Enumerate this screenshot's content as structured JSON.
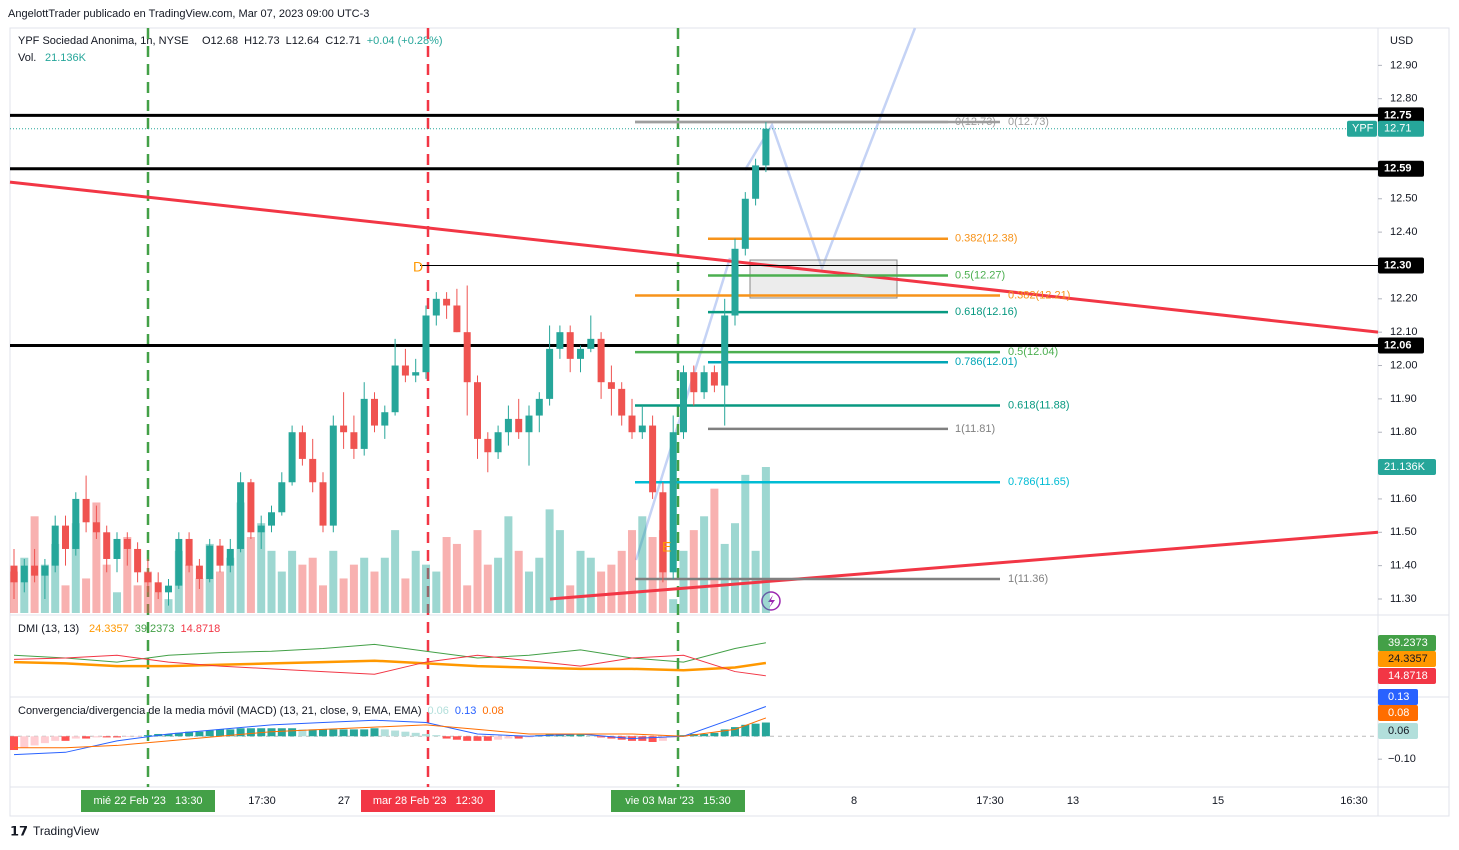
{
  "header": {
    "publisher": "AngelottTrader publicado en TradingView.com, Mar 07, 2023 09:00 UTC-3",
    "symbol": "YPF Sociedad Anonima, 1h, NYSE",
    "ohlc": [
      "O12.68",
      "H12.73",
      "L12.64",
      "C12.71",
      "+0.04 (+0.28%)"
    ],
    "volume_title": "Vol.",
    "volume_value": "21.136K",
    "currency": "USD",
    "footer": "TradingView"
  },
  "chart_data": {
    "type": "candlestick",
    "ylim": [
      11.252,
      13.012
    ],
    "yticks": [
      {
        "value": 12.9,
        "label": "12.90"
      },
      {
        "value": 12.8,
        "label": "12.80"
      },
      {
        "value": 12.5,
        "label": "12.50"
      },
      {
        "value": 12.4,
        "label": "12.40"
      },
      {
        "value": 12.2,
        "label": "12.20"
      },
      {
        "value": 12.1,
        "label": "12.10"
      },
      {
        "value": 12.0,
        "label": "12.00"
      },
      {
        "value": 11.9,
        "label": "11.90"
      },
      {
        "value": 11.8,
        "label": "11.80"
      },
      {
        "value": 11.6,
        "label": "11.60"
      },
      {
        "value": 11.5,
        "label": "11.50"
      },
      {
        "value": 11.4,
        "label": "11.40"
      },
      {
        "value": 11.3,
        "label": "11.30"
      }
    ],
    "up_color": "#26a69a",
    "down_color": "#ef5350",
    "candles": [
      [
        11.4,
        11.45,
        11.3,
        11.35
      ],
      [
        11.35,
        11.42,
        11.32,
        11.4
      ],
      [
        11.4,
        11.45,
        11.35,
        11.37
      ],
      [
        11.37,
        11.42,
        11.3,
        11.4
      ],
      [
        11.4,
        11.55,
        11.38,
        11.52
      ],
      [
        11.52,
        11.55,
        11.4,
        11.45
      ],
      [
        11.45,
        11.62,
        11.43,
        11.6
      ],
      [
        11.6,
        11.67,
        11.5,
        11.53
      ],
      [
        11.53,
        11.58,
        11.48,
        11.5
      ],
      [
        11.5,
        11.52,
        11.38,
        11.42
      ],
      [
        11.42,
        11.5,
        11.38,
        11.48
      ],
      [
        11.48,
        11.5,
        11.4,
        11.45
      ],
      [
        11.45,
        11.47,
        11.35,
        11.38
      ],
      [
        11.38,
        11.42,
        11.32,
        11.35
      ],
      [
        11.35,
        11.38,
        11.3,
        11.32
      ],
      [
        11.32,
        11.36,
        11.28,
        11.34
      ],
      [
        11.34,
        11.5,
        11.33,
        11.48
      ],
      [
        11.48,
        11.5,
        11.38,
        11.4
      ],
      [
        11.4,
        11.42,
        11.33,
        11.36
      ],
      [
        11.36,
        11.48,
        11.35,
        11.46
      ],
      [
        11.46,
        11.48,
        11.38,
        11.4
      ],
      [
        11.4,
        11.48,
        11.38,
        11.45
      ],
      [
        11.45,
        11.68,
        11.44,
        11.65
      ],
      [
        11.65,
        11.66,
        11.48,
        11.5
      ],
      [
        11.5,
        11.55,
        11.45,
        11.52
      ],
      [
        11.52,
        11.58,
        11.5,
        11.56
      ],
      [
        11.56,
        11.68,
        11.55,
        11.65
      ],
      [
        11.65,
        11.82,
        11.64,
        11.8
      ],
      [
        11.8,
        11.82,
        11.7,
        11.72
      ],
      [
        11.72,
        11.78,
        11.62,
        11.65
      ],
      [
        11.65,
        11.68,
        11.5,
        11.52
      ],
      [
        11.52,
        11.85,
        11.5,
        11.82
      ],
      [
        11.82,
        11.92,
        11.75,
        11.8
      ],
      [
        11.8,
        11.85,
        11.72,
        11.75
      ],
      [
        11.75,
        11.95,
        11.73,
        11.9
      ],
      [
        11.9,
        11.92,
        11.8,
        11.82
      ],
      [
        11.82,
        11.88,
        11.78,
        11.86
      ],
      [
        11.86,
        12.08,
        11.85,
        12.0
      ],
      [
        12.0,
        12.05,
        11.95,
        11.97
      ],
      [
        11.97,
        12.02,
        11.95,
        11.98
      ],
      [
        11.98,
        12.18,
        11.96,
        12.15
      ],
      [
        12.15,
        12.22,
        12.12,
        12.2
      ],
      [
        12.2,
        12.22,
        12.14,
        12.18
      ],
      [
        12.18,
        12.23,
        12.1,
        12.1
      ],
      [
        12.1,
        12.24,
        11.85,
        11.95
      ],
      [
        11.95,
        11.97,
        11.72,
        11.78
      ],
      [
        11.78,
        11.8,
        11.68,
        11.74
      ],
      [
        11.74,
        11.82,
        11.72,
        11.8
      ],
      [
        11.8,
        11.88,
        11.76,
        11.84
      ],
      [
        11.84,
        11.9,
        11.78,
        11.8
      ],
      [
        11.8,
        11.88,
        11.7,
        11.85
      ],
      [
        11.85,
        11.92,
        11.8,
        11.9
      ],
      [
        11.9,
        12.12,
        11.88,
        12.05
      ],
      [
        12.05,
        12.12,
        12.02,
        12.1
      ],
      [
        12.1,
        12.12,
        11.98,
        12.02
      ],
      [
        12.02,
        12.06,
        11.98,
        12.05
      ],
      [
        12.05,
        12.15,
        12.04,
        12.08
      ],
      [
        12.08,
        12.1,
        11.9,
        11.95
      ],
      [
        11.95,
        12.0,
        11.85,
        11.93
      ],
      [
        11.93,
        11.95,
        11.82,
        11.85
      ],
      [
        11.85,
        11.9,
        11.78,
        11.8
      ],
      [
        11.8,
        11.88,
        11.78,
        11.82
      ],
      [
        11.82,
        11.85,
        11.6,
        11.62
      ],
      [
        11.62,
        11.65,
        11.35,
        11.38
      ],
      [
        11.38,
        11.85,
        11.36,
        11.8
      ],
      [
        11.8,
        12.0,
        11.78,
        11.98
      ],
      [
        11.98,
        12.0,
        11.88,
        11.92
      ],
      [
        11.92,
        12.0,
        11.9,
        11.98
      ],
      [
        11.98,
        12.0,
        11.92,
        11.94
      ],
      [
        11.94,
        12.2,
        11.82,
        12.15
      ],
      [
        12.15,
        12.38,
        12.12,
        12.35
      ],
      [
        12.35,
        12.52,
        12.33,
        12.5
      ],
      [
        12.5,
        12.62,
        12.48,
        12.6
      ],
      [
        12.6,
        12.73,
        12.58,
        12.71
      ]
    ],
    "volume": [
      6,
      8,
      14,
      7,
      10,
      4,
      13,
      5,
      16,
      7,
      3,
      11,
      4,
      6,
      3,
      2,
      9,
      7,
      5,
      10,
      6,
      8,
      16,
      11,
      13,
      9,
      6,
      9,
      7,
      8,
      4,
      9,
      5,
      7,
      8,
      6,
      8,
      12,
      5,
      9,
      7,
      6,
      11,
      10,
      4,
      12,
      7,
      8,
      14,
      9,
      6,
      8,
      15,
      12,
      4,
      9,
      8,
      6,
      7,
      9,
      12,
      14,
      11,
      12,
      2,
      9,
      12,
      14,
      18,
      10,
      13,
      20,
      9,
      21.136
    ],
    "volume_label": {
      "value": 21.136,
      "label": "21.136K"
    },
    "last_price": {
      "symbol": "YPF",
      "value": 12.71,
      "label": "12.71"
    },
    "levels": [
      {
        "value": 12.75,
        "label": "12.75"
      },
      {
        "value": 12.59,
        "label": "12.59"
      },
      {
        "value": 12.3,
        "label": "12.30"
      },
      {
        "value": 12.06,
        "label": "12.06"
      }
    ],
    "fib_levels": [
      {
        "value": 12.73,
        "label": "0(12.73)",
        "color": "#9e9e9e"
      },
      {
        "value": 12.38,
        "label": "0.382(12.38)",
        "color": "#f7931a"
      },
      {
        "value": 12.27,
        "label": "0.5(12.27)",
        "color": "#4caf50"
      },
      {
        "value": 12.16,
        "label": "0.618(12.16)",
        "color": "#089981"
      },
      {
        "value": 12.01,
        "label": "0.786(12.01)",
        "color": "#00a5b5"
      },
      {
        "value": 11.81,
        "label": "1(11.81)",
        "color": "#808080"
      },
      {
        "value": 12.73,
        "label": "0(12.73)",
        "color": "#9e9e9e"
      },
      {
        "value": 12.21,
        "label": "0.382(12.21)",
        "color": "#f7931a"
      },
      {
        "value": 12.04,
        "label": "0.5(12.04)",
        "color": "#4caf50"
      },
      {
        "value": 11.88,
        "label": "0.618(11.88)",
        "color": "#089981"
      },
      {
        "value": 11.65,
        "label": "0.786(11.65)",
        "color": "#00bcd4"
      },
      {
        "value": 11.36,
        "label": "1(11.36)",
        "color": "#808080"
      }
    ],
    "trendlines": [
      {
        "color": "#f23645",
        "y": [
          12.55,
          12.1
        ]
      },
      {
        "color": "#f23645",
        "y": [
          11.3,
          11.5
        ]
      }
    ],
    "annotations": [
      "D",
      "E"
    ],
    "time_labels": [
      "mié 22 Feb '23   13:30",
      "17:30",
      "27",
      "mar 28 Feb '23   12:30",
      "vie 03 Mar '23   15:30",
      "8",
      "17:30",
      "13",
      "15",
      "16:30"
    ],
    "dmi": {
      "title": "DMI (13, 13)",
      "ylim": [
        0,
        56
      ],
      "x": [
        0,
        5,
        10,
        15,
        20,
        25,
        30,
        35,
        40,
        45,
        50,
        55,
        60,
        65,
        70,
        73
      ],
      "series": [
        {
          "color": "#ff9800",
          "values": [
            25,
            24,
            22,
            22,
            23,
            24,
            25,
            26,
            24,
            22,
            21,
            20,
            20,
            19,
            21,
            24.3357
          ],
          "label": "24.3357"
        },
        {
          "color": "#43a047",
          "values": [
            30,
            28,
            25,
            30,
            32,
            33,
            35,
            38,
            33,
            28,
            30,
            34,
            28,
            25,
            35,
            39.2373
          ],
          "label": "39.2373"
        },
        {
          "color": "#f23645",
          "values": [
            27,
            28,
            30,
            25,
            22,
            20,
            18,
            16,
            25,
            30,
            26,
            22,
            28,
            30,
            18,
            14.8718
          ],
          "label": "14.8718"
        }
      ]
    },
    "macd": {
      "title": "Convergencia/divergencia de la media móvil (MACD) (13, 21, close, 9, EMA, EMA)",
      "ylim": [
        -0.2214,
        0.1714
      ],
      "yticks": [
        {
          "value": -0.1,
          "label": "−0.10"
        }
      ],
      "histogram": [
        -0.06,
        -0.05,
        -0.04,
        -0.03,
        -0.02,
        -0.02,
        -0.01,
        -0.01,
        -0.005,
        -0.005,
        -0.005,
        -0.003,
        -0.002,
        0.005,
        0.01,
        0.01,
        0.015,
        0.02,
        0.02,
        0.025,
        0.03,
        0.03,
        0.035,
        0.035,
        0.035,
        0.035,
        0.035,
        0.035,
        0.03,
        0.03,
        0.03,
        0.03,
        0.03,
        0.03,
        0.03,
        0.035,
        0.03,
        0.025,
        0.02,
        0.015,
        0.01,
        0.005,
        -0.01,
        -0.015,
        -0.02,
        -0.02,
        -0.02,
        -0.015,
        -0.01,
        -0.01,
        -0.005,
        0.005,
        0.01,
        0.01,
        0.01,
        0.01,
        0.005,
        -0.005,
        -0.01,
        -0.015,
        -0.02,
        -0.02,
        -0.025,
        -0.02,
        -0.005,
        0.005,
        0.01,
        0.01,
        0.015,
        0.03,
        0.04,
        0.05,
        0.055,
        0.06
      ],
      "histogram_label": "0.06",
      "x": [
        0,
        5,
        10,
        15,
        20,
        25,
        30,
        35,
        40,
        45,
        50,
        55,
        60,
        65,
        70,
        73
      ],
      "series": [
        {
          "color": "#2962ff",
          "values": [
            -0.08,
            -0.07,
            -0.02,
            0.01,
            0.03,
            0.05,
            0.06,
            0.07,
            0.06,
            0.01,
            0.0,
            0.01,
            -0.01,
            0.0,
            0.08,
            0.13
          ],
          "label": "0.13"
        },
        {
          "color": "#ff6d00",
          "values": [
            -0.05,
            -0.05,
            -0.04,
            -0.02,
            0.0,
            0.02,
            0.03,
            0.04,
            0.05,
            0.03,
            0.01,
            0.01,
            0.01,
            0.0,
            0.03,
            0.08
          ],
          "label": "0.08"
        }
      ]
    }
  }
}
